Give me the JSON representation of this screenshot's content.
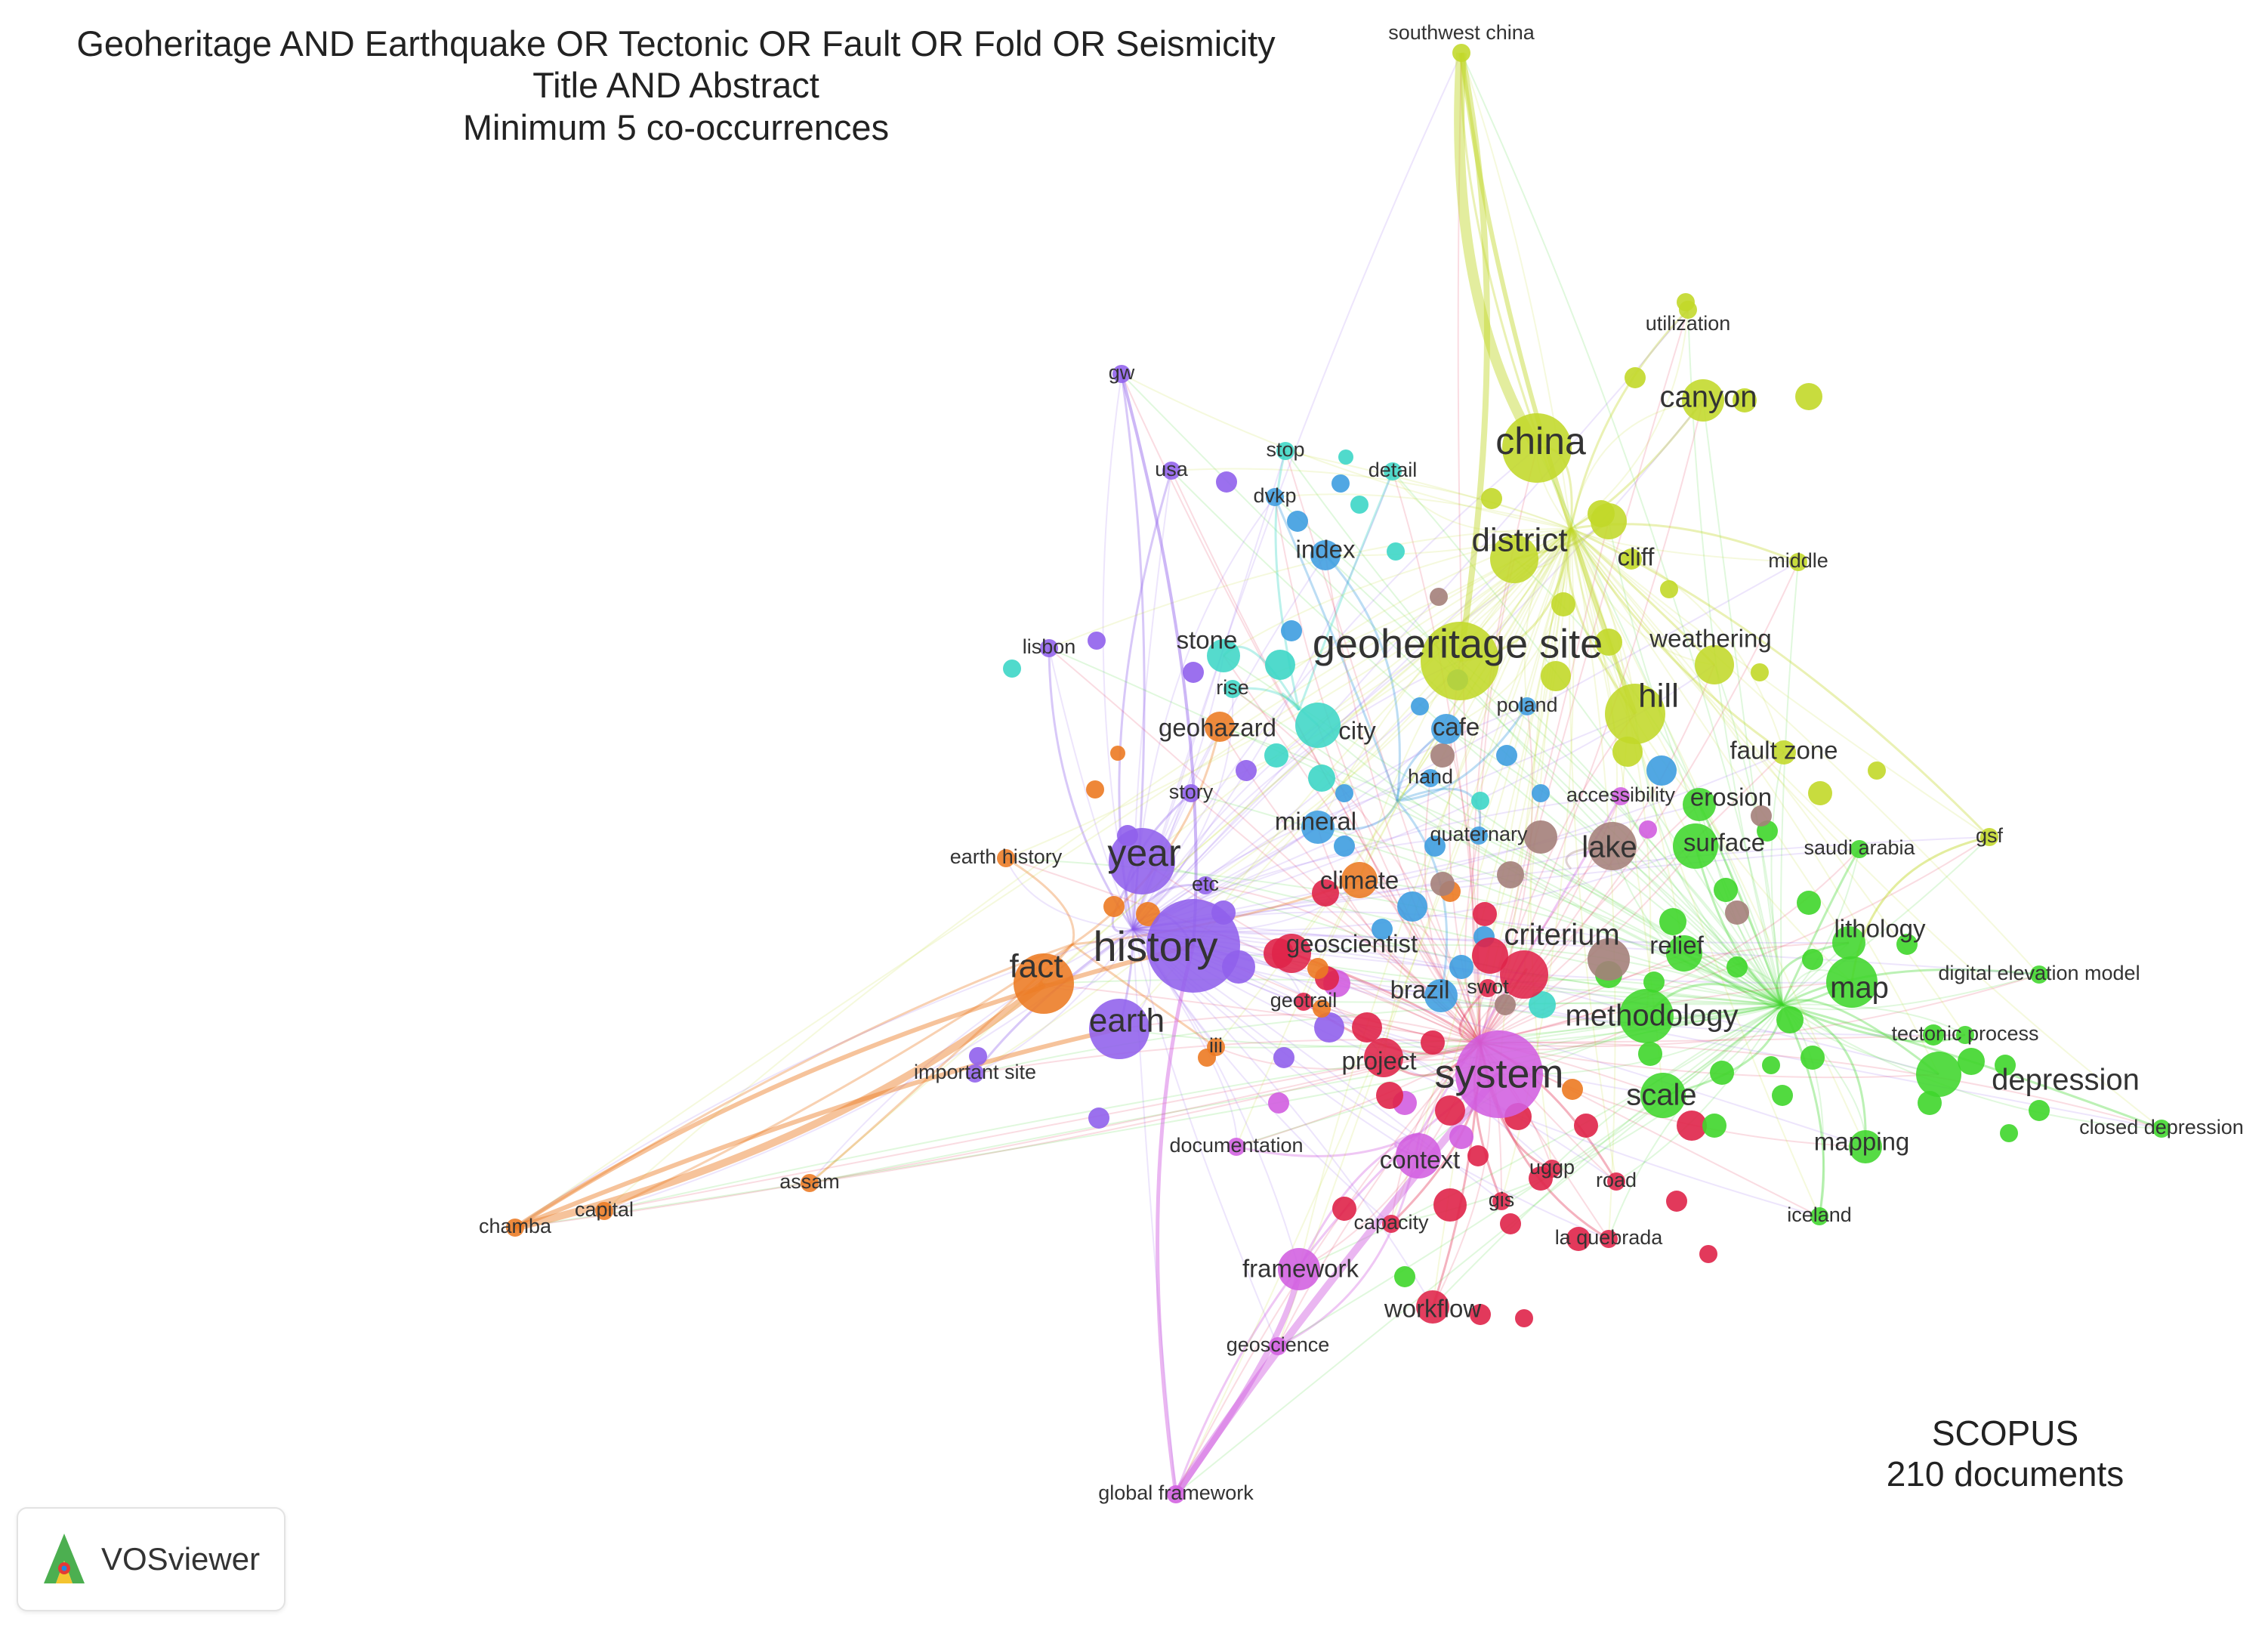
{
  "header": {
    "lines": [
      "Geoheritage AND Earthquake OR Tectonic OR Fault OR Fold OR Seismicity",
      "Title AND Abstract",
      "Minimum 5 co-occurrences"
    ]
  },
  "source": {
    "database": "SCOPUS",
    "documents": "210 documents"
  },
  "badge": {
    "name": "VOSviewer",
    "icon": "vosviewer-logo-icon"
  },
  "clusters": {
    "yellow": "#c2d829",
    "green": "#3fd62b",
    "cyan": "#3dd6c6",
    "blue": "#3e9de0",
    "purple": "#9060ec",
    "magenta": "#d15ee0",
    "red": "#df2349",
    "orange": "#ec7a22",
    "brown": "#a47f7a"
  },
  "network": {
    "nodes": [
      {
        "label": "southwest china",
        "cluster": "yellow",
        "weight": 1
      },
      {
        "label": "utilization",
        "cluster": "yellow",
        "weight": 1
      },
      {
        "label": "canyon",
        "cluster": "yellow",
        "weight": 3
      },
      {
        "label": "china",
        "cluster": "yellow",
        "weight": 5
      },
      {
        "label": "district",
        "cluster": "yellow",
        "weight": 4
      },
      {
        "label": "cliff",
        "cluster": "yellow",
        "weight": 2
      },
      {
        "label": "middle",
        "cluster": "yellow",
        "weight": 1
      },
      {
        "label": "weathering",
        "cluster": "yellow",
        "weight": 2
      },
      {
        "label": "geoheritage site",
        "cluster": "yellow",
        "weight": 6
      },
      {
        "label": "hill",
        "cluster": "yellow",
        "weight": 4
      },
      {
        "label": "fault zone",
        "cluster": "yellow",
        "weight": 2
      },
      {
        "label": "gsf",
        "cluster": "yellow",
        "weight": 1
      },
      {
        "label": "gw",
        "cluster": "purple",
        "weight": 1
      },
      {
        "label": "usa",
        "cluster": "purple",
        "weight": 1
      },
      {
        "label": "stop",
        "cluster": "cyan",
        "weight": 1
      },
      {
        "label": "detail",
        "cluster": "cyan",
        "weight": 1
      },
      {
        "label": "dvkp",
        "cluster": "blue",
        "weight": 1
      },
      {
        "label": "index",
        "cluster": "blue",
        "weight": 2
      },
      {
        "label": "lisbon",
        "cluster": "purple",
        "weight": 1
      },
      {
        "label": "stone",
        "cluster": "cyan",
        "weight": 2
      },
      {
        "label": "rise",
        "cluster": "cyan",
        "weight": 1
      },
      {
        "label": "geohazard",
        "cluster": "orange",
        "weight": 2
      },
      {
        "label": "city",
        "cluster": "cyan",
        "weight": 2
      },
      {
        "label": "cafe",
        "cluster": "blue",
        "weight": 2
      },
      {
        "label": "poland",
        "cluster": "blue",
        "weight": 1
      },
      {
        "label": "hand",
        "cluster": "blue",
        "weight": 1
      },
      {
        "label": "story",
        "cluster": "purple",
        "weight": 1
      },
      {
        "label": "accessibility",
        "cluster": "magenta",
        "weight": 1
      },
      {
        "label": "erosion",
        "cluster": "green",
        "weight": 2
      },
      {
        "label": "mineral",
        "cluster": "blue",
        "weight": 2
      },
      {
        "label": "quaternary",
        "cluster": "blue",
        "weight": 1
      },
      {
        "label": "lake",
        "cluster": "brown",
        "weight": 3
      },
      {
        "label": "surface",
        "cluster": "green",
        "weight": 2
      },
      {
        "label": "saudi arabia",
        "cluster": "green",
        "weight": 1
      },
      {
        "label": "earth history",
        "cluster": "orange",
        "weight": 1
      },
      {
        "label": "year",
        "cluster": "purple",
        "weight": 5
      },
      {
        "label": "etc",
        "cluster": "purple",
        "weight": 1
      },
      {
        "label": "climate",
        "cluster": "orange",
        "weight": 2
      },
      {
        "label": "criterium",
        "cluster": "red",
        "weight": 3
      },
      {
        "label": "lithology",
        "cluster": "green",
        "weight": 2
      },
      {
        "label": "fact",
        "cluster": "orange",
        "weight": 4
      },
      {
        "label": "history",
        "cluster": "purple",
        "weight": 7
      },
      {
        "label": "geoscientist",
        "cluster": "red",
        "weight": 2
      },
      {
        "label": "relief",
        "cluster": "green",
        "weight": 2
      },
      {
        "label": "digital elevation model",
        "cluster": "green",
        "weight": 1
      },
      {
        "label": "map",
        "cluster": "green",
        "weight": 3
      },
      {
        "label": "geotrail",
        "cluster": "red",
        "weight": 1
      },
      {
        "label": "brazil",
        "cluster": "blue",
        "weight": 2
      },
      {
        "label": "swot",
        "cluster": "red",
        "weight": 1
      },
      {
        "label": "methodology",
        "cluster": "green",
        "weight": 3
      },
      {
        "label": "earth",
        "cluster": "purple",
        "weight": 4
      },
      {
        "label": "tectonic process",
        "cluster": "green",
        "weight": 1
      },
      {
        "label": "iii",
        "cluster": "orange",
        "weight": 1
      },
      {
        "label": "important site",
        "cluster": "purple",
        "weight": 1
      },
      {
        "label": "project",
        "cluster": "red",
        "weight": 2
      },
      {
        "label": "system",
        "cluster": "magenta",
        "weight": 6
      },
      {
        "label": "scale",
        "cluster": "green",
        "weight": 3
      },
      {
        "label": "depression",
        "cluster": "green",
        "weight": 3
      },
      {
        "label": "closed depression",
        "cluster": "green",
        "weight": 1
      },
      {
        "label": "documentation",
        "cluster": "magenta",
        "weight": 1
      },
      {
        "label": "mapping",
        "cluster": "green",
        "weight": 2
      },
      {
        "label": "context",
        "cluster": "magenta",
        "weight": 2
      },
      {
        "label": "uggp",
        "cluster": "red",
        "weight": 1
      },
      {
        "label": "road",
        "cluster": "red",
        "weight": 1
      },
      {
        "label": "iceland",
        "cluster": "green",
        "weight": 1
      },
      {
        "label": "assam",
        "cluster": "orange",
        "weight": 1
      },
      {
        "label": "gis",
        "cluster": "red",
        "weight": 1
      },
      {
        "label": "capital",
        "cluster": "orange",
        "weight": 1
      },
      {
        "label": "chamba",
        "cluster": "orange",
        "weight": 1
      },
      {
        "label": "capacity",
        "cluster": "red",
        "weight": 1
      },
      {
        "label": "la quebrada",
        "cluster": "red",
        "weight": 1
      },
      {
        "label": "framework",
        "cluster": "magenta",
        "weight": 2
      },
      {
        "label": "workflow",
        "cluster": "red",
        "weight": 2
      },
      {
        "label": "geoscience",
        "cluster": "magenta",
        "weight": 1
      },
      {
        "label": "global framework",
        "cluster": "magenta",
        "weight": 1
      }
    ]
  }
}
